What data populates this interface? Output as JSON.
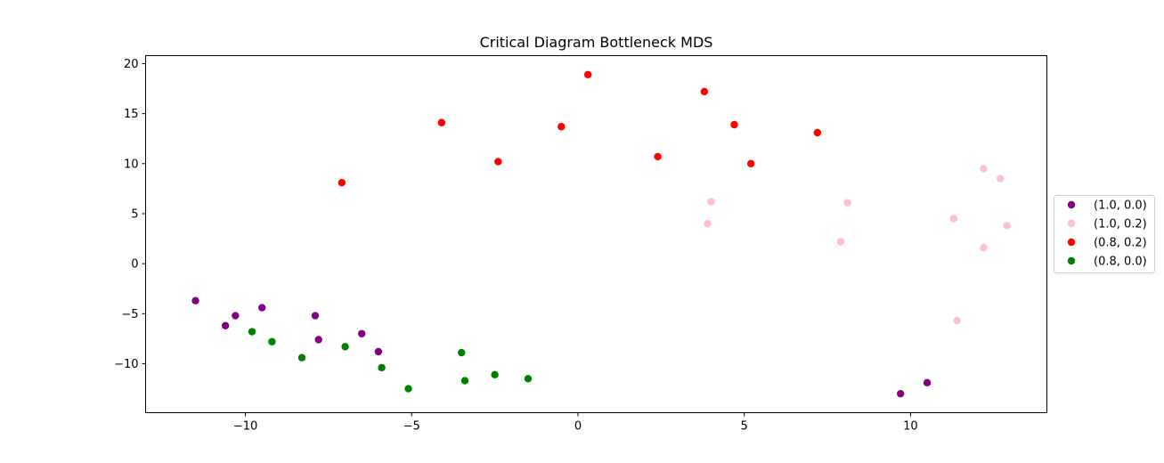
{
  "chart_data": {
    "type": "scatter",
    "title": "Critical Diagram Bottleneck MDS",
    "xlabel": "",
    "ylabel": "",
    "xlim": [
      -13.0,
      14.1
    ],
    "ylim": [
      -14.9,
      20.8
    ],
    "x_ticks": [
      -10,
      -5,
      0,
      5,
      10
    ],
    "y_ticks": [
      -10,
      -5,
      0,
      5,
      10,
      15,
      20
    ],
    "grid": false,
    "legend_placement": "center-right outside",
    "series": [
      {
        "name": "(1.0, 0.0)",
        "color": "#800080",
        "points": [
          [
            -11.5,
            -3.7
          ],
          [
            -10.6,
            -6.2
          ],
          [
            -10.3,
            -5.2
          ],
          [
            -9.5,
            -4.4
          ],
          [
            -7.9,
            -5.2
          ],
          [
            -7.8,
            -7.6
          ],
          [
            -6.5,
            -7.0
          ],
          [
            -6.0,
            -8.8
          ],
          [
            9.7,
            -13.0
          ],
          [
            10.5,
            -11.9
          ]
        ]
      },
      {
        "name": "(1.0, 0.2)",
        "color": "#ffc0cb",
        "points": [
          [
            3.9,
            4.0
          ],
          [
            4.0,
            6.2
          ],
          [
            7.9,
            2.2
          ],
          [
            8.1,
            6.1
          ],
          [
            11.3,
            4.5
          ],
          [
            11.4,
            -5.7
          ],
          [
            12.2,
            9.5
          ],
          [
            12.2,
            1.6
          ],
          [
            12.7,
            8.5
          ],
          [
            12.9,
            3.8
          ]
        ]
      },
      {
        "name": "(0.8, 0.2)",
        "color": "#ff0000",
        "points": [
          [
            -7.1,
            8.1
          ],
          [
            -4.1,
            14.1
          ],
          [
            -2.4,
            10.2
          ],
          [
            -0.5,
            13.7
          ],
          [
            0.3,
            18.9
          ],
          [
            2.4,
            10.7
          ],
          [
            3.8,
            17.2
          ],
          [
            4.7,
            13.9
          ],
          [
            5.2,
            10.0
          ],
          [
            7.2,
            13.1
          ]
        ]
      },
      {
        "name": "(0.8, 0.0)",
        "color": "#008000",
        "points": [
          [
            -9.8,
            -6.8
          ],
          [
            -9.2,
            -7.8
          ],
          [
            -8.3,
            -9.4
          ],
          [
            -7.0,
            -8.3
          ],
          [
            -5.9,
            -10.4
          ],
          [
            -5.1,
            -12.5
          ],
          [
            -3.5,
            -8.9
          ],
          [
            -3.4,
            -11.7
          ],
          [
            -2.5,
            -11.1
          ],
          [
            -1.5,
            -11.5
          ]
        ]
      }
    ]
  }
}
